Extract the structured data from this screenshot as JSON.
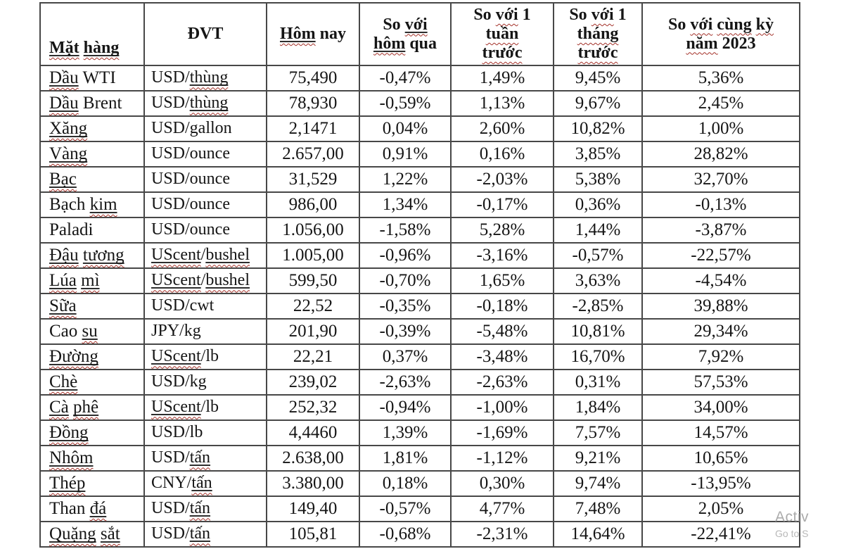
{
  "chart_data": {
    "type": "table",
    "headers": [
      "Mặt hàng",
      "ĐVT",
      "Hôm nay",
      "So với\nhôm qua",
      "So với 1\ntuần\ntrước",
      "So với 1\ntháng\ntrước",
      "So với cùng kỳ\nnăm 2023"
    ],
    "rows": [
      [
        "Dầu WTI",
        "USD/thùng",
        "75,490",
        "-0,47%",
        "1,49%",
        "9,45%",
        "5,36%"
      ],
      [
        "Dầu Brent",
        "USD/thùng",
        "78,930",
        "-0,59%",
        "1,13%",
        "9,67%",
        "2,45%"
      ],
      [
        "Xăng",
        "USD/gallon",
        "2,1471",
        "0,04%",
        "2,60%",
        "10,82%",
        "1,00%"
      ],
      [
        "Vàng",
        "USD/ounce",
        "2.657,00",
        "0,91%",
        "0,16%",
        "3,85%",
        "28,82%"
      ],
      [
        "Bạc",
        "USD/ounce",
        "31,529",
        "1,22%",
        "-2,03%",
        "5,38%",
        "32,70%"
      ],
      [
        "Bạch kim",
        "USD/ounce",
        "986,00",
        "1,34%",
        "-0,17%",
        "0,36%",
        "-0,13%"
      ],
      [
        "Paladi",
        "USD/ounce",
        "1.056,00",
        "-1,58%",
        "5,28%",
        "1,44%",
        "-3,87%"
      ],
      [
        "Đậu tương",
        "UScent/bushel",
        "1.005,00",
        "-0,96%",
        "-3,16%",
        "-0,57%",
        "-22,57%"
      ],
      [
        "Lúa mì",
        "UScent/bushel",
        "599,50",
        "-0,70%",
        "1,65%",
        "3,63%",
        "-4,54%"
      ],
      [
        "Sữa",
        "USD/cwt",
        "22,52",
        "-0,35%",
        "-0,18%",
        "-2,85%",
        "39,88%"
      ],
      [
        "Cao su",
        "JPY/kg",
        "201,90",
        "-0,39%",
        "-5,48%",
        "10,81%",
        "29,34%"
      ],
      [
        "Đường",
        "UScent/lb",
        "22,21",
        "0,37%",
        "-3,48%",
        "16,70%",
        "7,92%"
      ],
      [
        "Chè",
        "USD/kg",
        "239,02",
        "-2,63%",
        "-2,63%",
        "0,31%",
        "57,53%"
      ],
      [
        "Cà phê",
        "UScent/lb",
        "252,32",
        "-0,94%",
        "-1,00%",
        "1,84%",
        "34,00%"
      ],
      [
        "Đồng",
        "USD/lb",
        "4,4460",
        "1,39%",
        "-1,69%",
        "7,57%",
        "14,57%"
      ],
      [
        "Nhôm",
        "USD/tấn",
        "2.638,00",
        "1,81%",
        "-1,12%",
        "9,21%",
        "10,65%"
      ],
      [
        "Thép",
        "CNY/tấn",
        "3.380,00",
        "0,18%",
        "0,30%",
        "9,74%",
        "-13,95%"
      ],
      [
        "Than đá",
        "USD/tấn",
        "149,40",
        "-0,57%",
        "4,77%",
        "7,48%",
        "2,05%"
      ],
      [
        "Quặng sắt",
        "USD/tấn",
        "105,81",
        "-0,68%",
        "-2,31%",
        "14,64%",
        "-22,41%"
      ]
    ]
  },
  "spellcheck_words": [
    "Mặt",
    "hàng",
    "Hôm",
    "với",
    "hôm",
    "tuần",
    "trước",
    "tháng",
    "cùng",
    "kỳ",
    "năm",
    "Dầu",
    "thùng",
    "Xăng",
    "Vàng",
    "Bạc",
    "kim",
    "Đậu",
    "tương",
    "UScent",
    "bushel",
    "Lúa",
    "mì",
    "Sữa",
    "su",
    "Đường",
    "Chè",
    "Cà",
    "phê",
    "Đồng",
    "Nhôm",
    "tấn",
    "Thép",
    "đá",
    "Quặng",
    "sắt"
  ],
  "watermark": {
    "line1": "Activ",
    "line2": "Go to S"
  },
  "colors": {
    "border": "#474747",
    "text": "#151515",
    "squiggle": "#a33028",
    "watermark": "#969696"
  }
}
